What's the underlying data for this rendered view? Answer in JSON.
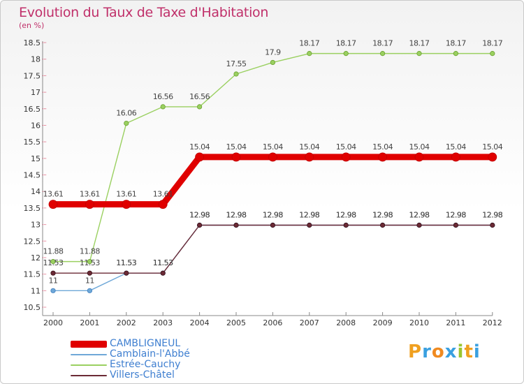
{
  "header": {
    "title": "Evolution du Taux de Taxe d'Habitation",
    "unit": "(en %)"
  },
  "logo": [
    "P",
    "r",
    "o",
    "x",
    "i",
    "t",
    "i"
  ],
  "chart_data": {
    "type": "line",
    "title": "Evolution du Taux de Taxe d'Habitation",
    "ylabel": "(en %)",
    "xlabel": "",
    "x": [
      "2000",
      "2001",
      "2002",
      "2003",
      "2004",
      "2005",
      "2006",
      "2007",
      "2008",
      "2009",
      "2010",
      "2011",
      "2012"
    ],
    "ylim": [
      10.5,
      18.5
    ],
    "yticks": [
      "10.5",
      "11",
      "11.5",
      "12",
      "12.5",
      "13",
      "13.5",
      "14",
      "14.5",
      "15",
      "15.5",
      "16",
      "16.5",
      "17",
      "17.5",
      "18",
      "18.5"
    ],
    "grid": false,
    "legend": "bottom-left",
    "series": [
      {
        "name": "CAMBLIGNEUL",
        "color": "#e00000",
        "values": [
          13.61,
          13.61,
          13.61,
          13.61,
          15.04,
          15.04,
          15.04,
          15.04,
          15.04,
          15.04,
          15.04,
          15.04,
          15.04
        ],
        "labels": [
          "13.61",
          "13.61",
          "13.61",
          "13.61",
          "15.04",
          "15.04",
          "15.04",
          "15.04",
          "15.04",
          "15.04",
          "15.04",
          "15.04",
          "15.04"
        ]
      },
      {
        "name": "Camblain-l'Abbé",
        "color": "#6fa8d8",
        "values": [
          11,
          11,
          11.53,
          11.53,
          12.98,
          12.98,
          12.98,
          12.98,
          12.98,
          12.98,
          12.98,
          12.98,
          12.98
        ],
        "labels": [
          "11",
          "11",
          "11.53",
          "11.53",
          "12.98",
          "12.98",
          "12.98",
          "12.98",
          "12.98",
          "12.98",
          "12.98",
          "12.98",
          "12.98"
        ]
      },
      {
        "name": "Estrée-Cauchy",
        "color": "#9ad060",
        "values": [
          11.88,
          11.88,
          16.06,
          16.56,
          16.56,
          17.55,
          17.9,
          18.17,
          18.17,
          18.17,
          18.17,
          18.17,
          18.17
        ],
        "labels": [
          "11.88",
          "11.88",
          "16.06",
          "16.56",
          "16.56",
          "17.55",
          "17.9",
          "18.17",
          "18.17",
          "18.17",
          "18.17",
          "18.17",
          "18.17"
        ]
      },
      {
        "name": "Villers-Châtel",
        "color": "#6b2a35",
        "values": [
          11.53,
          11.53,
          11.53,
          11.53,
          12.98,
          12.98,
          12.98,
          12.98,
          12.98,
          12.98,
          12.98,
          12.98,
          12.98
        ],
        "labels": [
          "11.53",
          "11.53",
          "11.53",
          "11.53",
          "12.98",
          "12.98",
          "12.98",
          "12.98",
          "12.98",
          "12.98",
          "12.98",
          "12.98",
          "12.98"
        ]
      }
    ]
  }
}
